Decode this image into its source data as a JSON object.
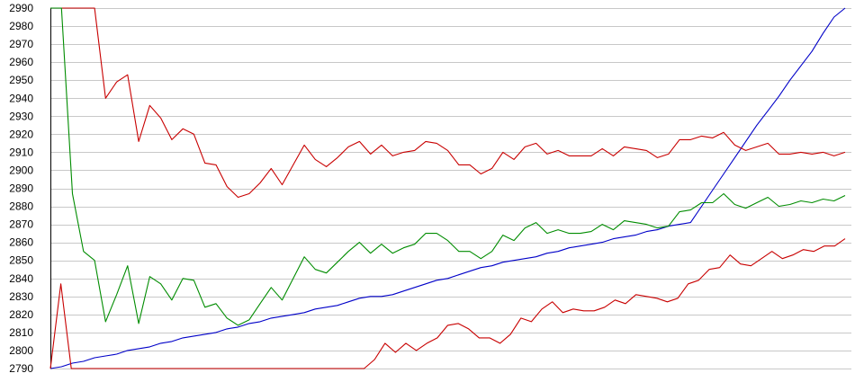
{
  "chart_data": {
    "type": "line",
    "title": "",
    "xlabel": "",
    "ylabel": "",
    "ylim": [
      2790,
      2990
    ],
    "yticks": [
      2790,
      2800,
      2810,
      2820,
      2830,
      2840,
      2850,
      2860,
      2870,
      2880,
      2890,
      2900,
      2910,
      2920,
      2930,
      2940,
      2950,
      2960,
      2970,
      2980,
      2990
    ],
    "grid": true,
    "legend": "none",
    "x_count": 81,
    "series": [
      {
        "color": "#0000c8",
        "values": [
          2790,
          2791,
          2793,
          2794,
          2796,
          2797,
          2798,
          2800,
          2801,
          2802,
          2804,
          2805,
          2807,
          2808,
          2809,
          2810,
          2812,
          2813,
          2815,
          2816,
          2818,
          2819,
          2820,
          2821,
          2823,
          2824,
          2825,
          2827,
          2829,
          2830,
          2830,
          2831,
          2833,
          2835,
          2837,
          2839,
          2840,
          2842,
          2844,
          2846,
          2847,
          2849,
          2850,
          2851,
          2852,
          2854,
          2855,
          2857,
          2858,
          2859,
          2860,
          2862,
          2863,
          2864,
          2866,
          2867,
          2869,
          2870,
          2871,
          2880,
          2889,
          2898,
          2907,
          2916,
          2925,
          2933,
          2941,
          2950,
          2958,
          2966,
          2976,
          2985,
          2990
        ]
      },
      {
        "color": "#c80000",
        "values": [
          2990,
          2990,
          2990,
          2990,
          2990,
          2940,
          2949,
          2953,
          2916,
          2936,
          2929,
          2917,
          2923,
          2920,
          2904,
          2903,
          2891,
          2885,
          2887,
          2893,
          2901,
          2892,
          2903,
          2914,
          2906,
          2902,
          2907,
          2913,
          2916,
          2909,
          2914,
          2908,
          2910,
          2911,
          2916,
          2915,
          2911,
          2903,
          2903,
          2898,
          2901,
          2910,
          2906,
          2913,
          2915,
          2909,
          2911,
          2908,
          2908,
          2908,
          2912,
          2908,
          2913,
          2912,
          2911,
          2907,
          2909,
          2917,
          2917,
          2919,
          2918,
          2921,
          2914,
          2911,
          2913,
          2915,
          2909,
          2909,
          2910,
          2909,
          2910,
          2908,
          2910
        ]
      },
      {
        "color": "#008c00",
        "values": [
          2990,
          2990,
          2887,
          2855,
          2850,
          2816,
          2831,
          2847,
          2815,
          2841,
          2837,
          2828,
          2840,
          2839,
          2824,
          2826,
          2818,
          2814,
          2817,
          2826,
          2835,
          2828,
          2840,
          2852,
          2845,
          2843,
          2849,
          2855,
          2860,
          2854,
          2859,
          2854,
          2857,
          2859,
          2865,
          2865,
          2861,
          2855,
          2855,
          2851,
          2855,
          2864,
          2861,
          2868,
          2871,
          2865,
          2867,
          2865,
          2865,
          2866,
          2870,
          2867,
          2872,
          2871,
          2870,
          2868,
          2869,
          2877,
          2878,
          2882,
          2882,
          2887,
          2881,
          2879,
          2882,
          2885,
          2880,
          2881,
          2883,
          2882,
          2884,
          2883,
          2886
        ]
      },
      {
        "color": "#c80000",
        "values": [
          2790,
          2837,
          2790,
          2790,
          2790,
          2790,
          2790,
          2790,
          2790,
          2790,
          2790,
          2790,
          2790,
          2790,
          2790,
          2790,
          2790,
          2790,
          2790,
          2790,
          2790,
          2790,
          2790,
          2790,
          2790,
          2790,
          2790,
          2790,
          2790,
          2790,
          2790,
          2795,
          2804,
          2799,
          2804,
          2800,
          2804,
          2807,
          2814,
          2815,
          2812,
          2807,
          2807,
          2804,
          2809,
          2818,
          2816,
          2823,
          2827,
          2821,
          2823,
          2822,
          2822,
          2824,
          2828,
          2826,
          2831,
          2830,
          2829,
          2827,
          2829,
          2837,
          2839,
          2845,
          2846,
          2853,
          2848,
          2847,
          2851,
          2855,
          2851,
          2853,
          2856,
          2855,
          2858,
          2858,
          2862
        ]
      }
    ]
  }
}
